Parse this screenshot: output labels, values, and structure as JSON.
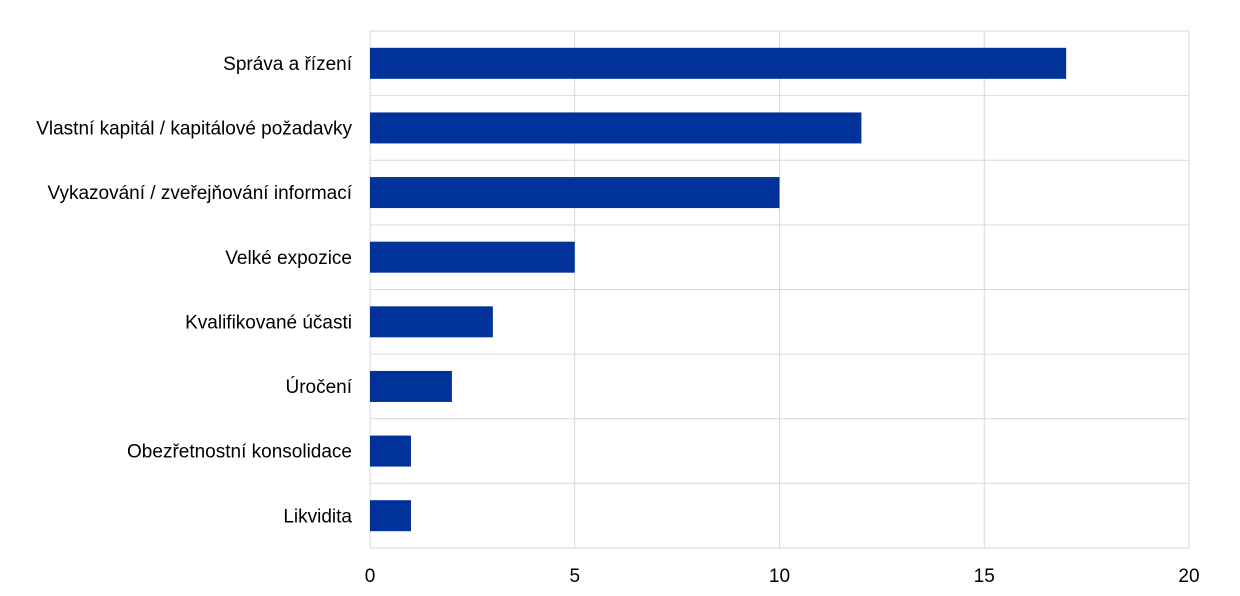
{
  "chart_data": {
    "type": "bar",
    "orientation": "horizontal",
    "categories": [
      "Správa a řízení",
      "Vlastní kapitál / kapitálové požadavky",
      "Vykazování / zveřejňování informací",
      "Velké expozice",
      "Kvalifikované účasti",
      "Úročení",
      "Obezřetnostní konsolidace",
      "Likvidita"
    ],
    "values": [
      17,
      12,
      10,
      5,
      3,
      2,
      1,
      1
    ],
    "xlim": [
      0,
      20
    ],
    "xticks": [
      0,
      5,
      10,
      15,
      20
    ],
    "xtick_labels": [
      "0",
      "5",
      "10",
      "15",
      "20"
    ],
    "title": "",
    "xlabel": "",
    "ylabel": "",
    "grid": true,
    "legend": "none",
    "colors": {
      "bar": "#003299",
      "grid": "#d9d9d9",
      "text": "#000000"
    }
  }
}
